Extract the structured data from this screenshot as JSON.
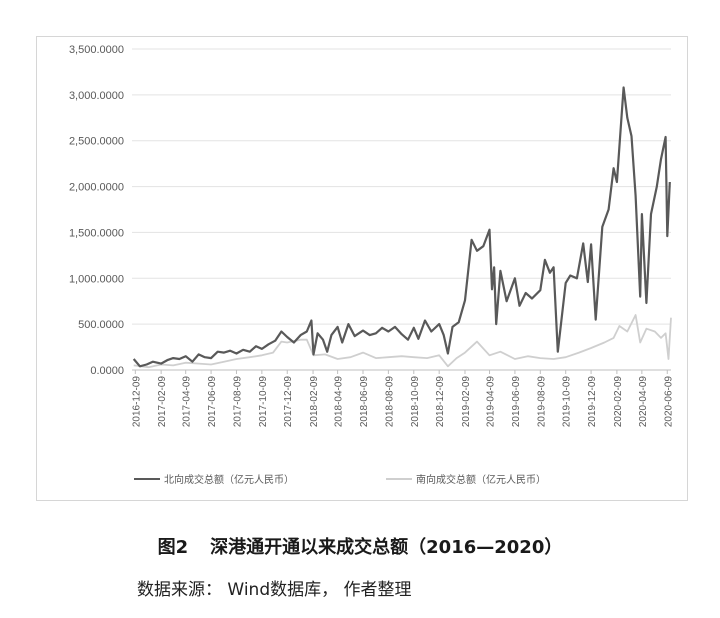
{
  "chart_data": {
    "type": "line",
    "ylim": [
      0,
      3500
    ],
    "yticks": [
      "0.0000",
      "500.0000",
      "1,000.0000",
      "1,500.0000",
      "2,000.0000",
      "2,500.0000",
      "3,000.0000",
      "3,500.0000"
    ],
    "xticks": [
      "2016-12-09",
      "2017-02-09",
      "2017-04-09",
      "2017-06-09",
      "2017-08-09",
      "2017-10-09",
      "2017-12-09",
      "2018-02-09",
      "2018-04-09",
      "2018-06-09",
      "2018-08-09",
      "2018-10-09",
      "2018-12-09",
      "2019-02-09",
      "2019-04-09",
      "2019-06-09",
      "2019-08-09",
      "2019-10-09",
      "2019-12-09",
      "2020-02-09",
      "2020-04-09",
      "2020-06-09"
    ],
    "grid": "horizontal",
    "legend_position": "bottom",
    "series": [
      {
        "name": "北向成交总额（亿元人民币）",
        "color": "#595959",
        "points": [
          [
            "2016-12-05",
            120
          ],
          [
            "2016-12-20",
            40
          ],
          [
            "2017-01-05",
            60
          ],
          [
            "2017-01-20",
            90
          ],
          [
            "2017-02-09",
            70
          ],
          [
            "2017-02-25",
            110
          ],
          [
            "2017-03-10",
            130
          ],
          [
            "2017-03-25",
            120
          ],
          [
            "2017-04-09",
            150
          ],
          [
            "2017-04-25",
            90
          ],
          [
            "2017-05-10",
            170
          ],
          [
            "2017-05-25",
            140
          ],
          [
            "2017-06-09",
            130
          ],
          [
            "2017-06-25",
            200
          ],
          [
            "2017-07-10",
            190
          ],
          [
            "2017-07-25",
            210
          ],
          [
            "2017-08-09",
            180
          ],
          [
            "2017-08-25",
            220
          ],
          [
            "2017-09-10",
            200
          ],
          [
            "2017-09-25",
            260
          ],
          [
            "2017-10-09",
            230
          ],
          [
            "2017-10-25",
            280
          ],
          [
            "2017-11-10",
            320
          ],
          [
            "2017-11-25",
            420
          ],
          [
            "2017-12-09",
            360
          ],
          [
            "2017-12-25",
            300
          ],
          [
            "2018-01-10",
            380
          ],
          [
            "2018-01-25",
            420
          ],
          [
            "2018-02-05",
            540
          ],
          [
            "2018-02-10",
            170
          ],
          [
            "2018-02-20",
            400
          ],
          [
            "2018-03-05",
            330
          ],
          [
            "2018-03-15",
            200
          ],
          [
            "2018-03-25",
            380
          ],
          [
            "2018-04-09",
            470
          ],
          [
            "2018-04-20",
            300
          ],
          [
            "2018-05-05",
            500
          ],
          [
            "2018-05-20",
            370
          ],
          [
            "2018-06-09",
            430
          ],
          [
            "2018-06-25",
            380
          ],
          [
            "2018-07-10",
            400
          ],
          [
            "2018-07-25",
            460
          ],
          [
            "2018-08-09",
            420
          ],
          [
            "2018-08-25",
            470
          ],
          [
            "2018-09-10",
            390
          ],
          [
            "2018-09-25",
            330
          ],
          [
            "2018-10-09",
            460
          ],
          [
            "2018-10-20",
            340
          ],
          [
            "2018-11-05",
            540
          ],
          [
            "2018-11-20",
            420
          ],
          [
            "2018-12-09",
            500
          ],
          [
            "2018-12-20",
            380
          ],
          [
            "2018-12-30",
            180
          ],
          [
            "2019-01-10",
            470
          ],
          [
            "2019-01-25",
            520
          ],
          [
            "2019-02-09",
            760
          ],
          [
            "2019-02-25",
            1420
          ],
          [
            "2019-03-10",
            1300
          ],
          [
            "2019-03-25",
            1350
          ],
          [
            "2019-04-09",
            1530
          ],
          [
            "2019-04-15",
            880
          ],
          [
            "2019-04-20",
            1120
          ],
          [
            "2019-04-25",
            500
          ],
          [
            "2019-05-05",
            1080
          ],
          [
            "2019-05-20",
            750
          ],
          [
            "2019-06-09",
            1000
          ],
          [
            "2019-06-20",
            700
          ],
          [
            "2019-07-05",
            840
          ],
          [
            "2019-07-20",
            780
          ],
          [
            "2019-08-09",
            870
          ],
          [
            "2019-08-20",
            1200
          ],
          [
            "2019-09-01",
            1060
          ],
          [
            "2019-09-10",
            1120
          ],
          [
            "2019-09-20",
            200
          ],
          [
            "2019-10-09",
            950
          ],
          [
            "2019-10-20",
            1030
          ],
          [
            "2019-11-05",
            1000
          ],
          [
            "2019-11-20",
            1380
          ],
          [
            "2019-12-01",
            960
          ],
          [
            "2019-12-09",
            1370
          ],
          [
            "2019-12-20",
            550
          ],
          [
            "2020-01-05",
            1560
          ],
          [
            "2020-01-20",
            1750
          ],
          [
            "2020-02-01",
            2200
          ],
          [
            "2020-02-09",
            2050
          ],
          [
            "2020-02-25",
            3080
          ],
          [
            "2020-03-05",
            2750
          ],
          [
            "2020-03-15",
            2550
          ],
          [
            "2020-03-25",
            1900
          ],
          [
            "2020-04-05",
            800
          ],
          [
            "2020-04-09",
            1700
          ],
          [
            "2020-04-20",
            730
          ],
          [
            "2020-05-01",
            1700
          ],
          [
            "2020-05-15",
            2000
          ],
          [
            "2020-05-25",
            2300
          ],
          [
            "2020-06-05",
            2540
          ],
          [
            "2020-06-09",
            1460
          ],
          [
            "2020-06-15",
            2050
          ]
        ]
      },
      {
        "name": "南向成交总额（亿元人民币）",
        "color": "#cfcfcf",
        "points": [
          [
            "2016-12-05",
            50
          ],
          [
            "2017-01-10",
            30
          ],
          [
            "2017-02-09",
            60
          ],
          [
            "2017-03-10",
            50
          ],
          [
            "2017-04-09",
            80
          ],
          [
            "2017-05-10",
            70
          ],
          [
            "2017-06-09",
            60
          ],
          [
            "2017-07-10",
            90
          ],
          [
            "2017-08-09",
            120
          ],
          [
            "2017-09-10",
            140
          ],
          [
            "2017-10-09",
            160
          ],
          [
            "2017-11-05",
            190
          ],
          [
            "2017-11-25",
            310
          ],
          [
            "2017-12-09",
            300
          ],
          [
            "2018-01-10",
            330
          ],
          [
            "2018-01-25",
            330
          ],
          [
            "2018-02-10",
            160
          ],
          [
            "2018-03-10",
            170
          ],
          [
            "2018-04-09",
            120
          ],
          [
            "2018-05-10",
            140
          ],
          [
            "2018-06-09",
            190
          ],
          [
            "2018-07-10",
            130
          ],
          [
            "2018-08-09",
            140
          ],
          [
            "2018-09-10",
            150
          ],
          [
            "2018-10-09",
            140
          ],
          [
            "2018-11-10",
            130
          ],
          [
            "2018-12-09",
            160
          ],
          [
            "2018-12-30",
            40
          ],
          [
            "2019-01-20",
            130
          ],
          [
            "2019-02-09",
            190
          ],
          [
            "2019-03-10",
            310
          ],
          [
            "2019-04-09",
            160
          ],
          [
            "2019-05-05",
            200
          ],
          [
            "2019-06-09",
            120
          ],
          [
            "2019-07-10",
            150
          ],
          [
            "2019-08-09",
            130
          ],
          [
            "2019-09-10",
            120
          ],
          [
            "2019-10-09",
            140
          ],
          [
            "2019-11-10",
            190
          ],
          [
            "2019-12-09",
            240
          ],
          [
            "2020-01-10",
            300
          ],
          [
            "2020-02-01",
            350
          ],
          [
            "2020-02-15",
            480
          ],
          [
            "2020-03-05",
            420
          ],
          [
            "2020-03-25",
            600
          ],
          [
            "2020-04-05",
            300
          ],
          [
            "2020-04-20",
            450
          ],
          [
            "2020-05-10",
            420
          ],
          [
            "2020-05-25",
            350
          ],
          [
            "2020-06-05",
            400
          ],
          [
            "2020-06-12",
            120
          ],
          [
            "2020-06-18",
            570
          ]
        ]
      }
    ]
  },
  "caption": {
    "figure_no": "图2",
    "title": "深港通开通以来成交总额（2016—2020）",
    "source": "数据来源： Wind数据库， 作者整理"
  }
}
